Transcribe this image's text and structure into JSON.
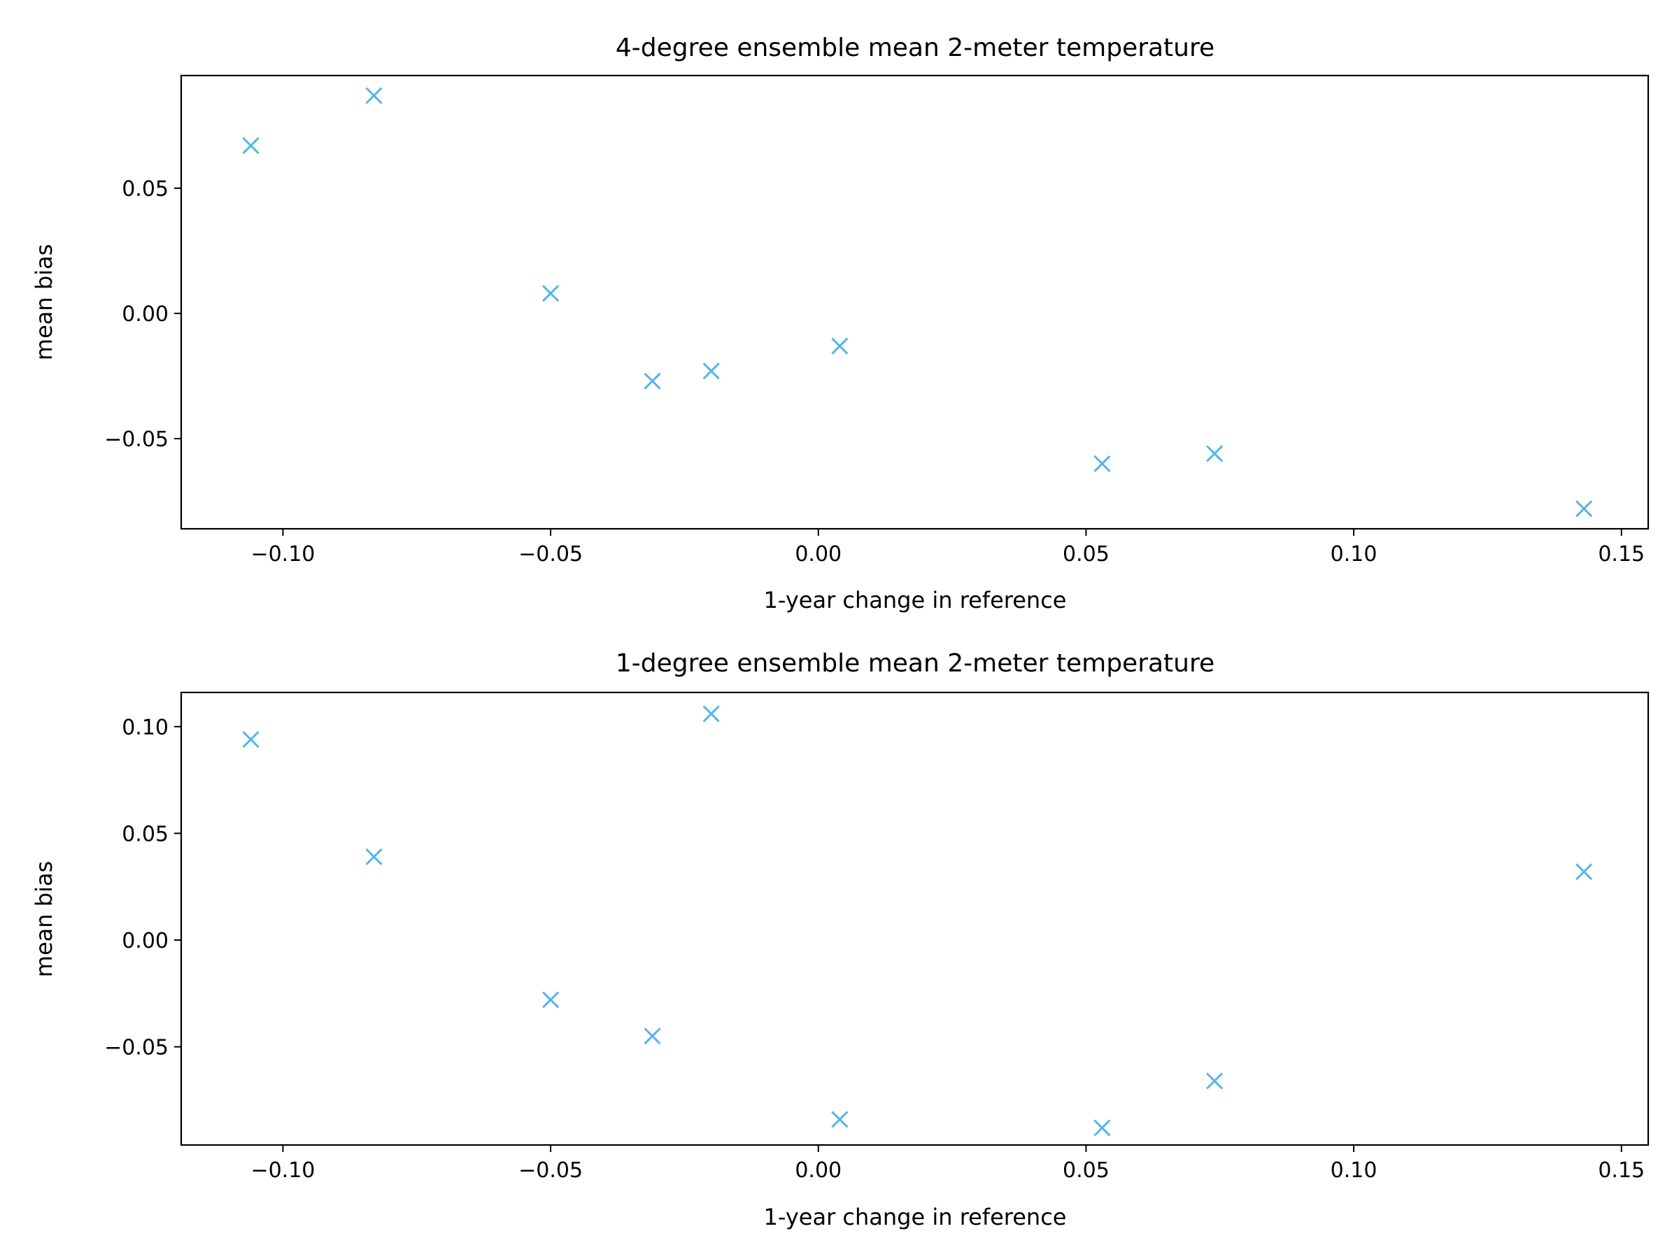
{
  "chart_data": [
    {
      "type": "scatter",
      "title": "4-degree ensemble mean 2-meter temperature",
      "xlabel": "1-year change in reference",
      "ylabel": "mean bias",
      "xlim": [
        -0.119,
        0.155
      ],
      "ylim": [
        -0.086,
        0.095
      ],
      "xticks": [
        -0.1,
        -0.05,
        0.0,
        0.05,
        0.1,
        0.15
      ],
      "xtick_labels": [
        "−0.10",
        "−0.05",
        "0.00",
        "0.05",
        "0.10",
        "0.15"
      ],
      "yticks": [
        -0.05,
        0.0,
        0.05
      ],
      "ytick_labels": [
        "−0.05",
        "0.00",
        "0.05"
      ],
      "marker": "x",
      "color": "#56B4E9",
      "grid": false,
      "series": [
        {
          "x": [
            -0.106,
            -0.083,
            -0.05,
            -0.031,
            -0.02,
            0.004,
            0.053,
            0.074,
            0.143
          ],
          "y": [
            0.067,
            0.087,
            0.008,
            -0.027,
            -0.023,
            -0.013,
            -0.06,
            -0.056,
            -0.078
          ]
        }
      ]
    },
    {
      "type": "scatter",
      "title": "1-degree ensemble mean 2-meter temperature",
      "xlabel": "1-year change in reference",
      "ylabel": "mean bias",
      "xlim": [
        -0.119,
        0.155
      ],
      "ylim": [
        -0.096,
        0.116
      ],
      "xticks": [
        -0.1,
        -0.05,
        0.0,
        0.05,
        0.1,
        0.15
      ],
      "xtick_labels": [
        "−0.10",
        "−0.05",
        "0.00",
        "0.05",
        "0.10",
        "0.15"
      ],
      "yticks": [
        -0.05,
        0.0,
        0.05,
        0.1
      ],
      "ytick_labels": [
        "−0.05",
        "0.00",
        "0.05",
        "0.10"
      ],
      "marker": "x",
      "color": "#56B4E9",
      "grid": false,
      "series": [
        {
          "x": [
            -0.106,
            -0.083,
            -0.05,
            -0.031,
            -0.02,
            0.004,
            0.053,
            0.074,
            0.143
          ],
          "y": [
            0.094,
            0.039,
            -0.028,
            -0.045,
            0.106,
            -0.084,
            -0.088,
            -0.066,
            0.032
          ]
        }
      ]
    }
  ]
}
